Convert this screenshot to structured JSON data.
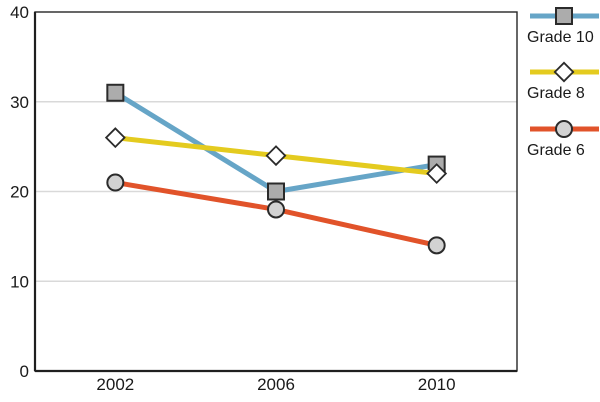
{
  "chart_data": {
    "type": "line",
    "categories": [
      "2002",
      "2006",
      "2010"
    ],
    "series": [
      {
        "name": "Grade 10",
        "values": [
          31,
          20,
          23
        ],
        "color": "#66A5C7",
        "marker": "square",
        "marker_fill": "#ACACAC"
      },
      {
        "name": "Grade 8",
        "values": [
          26,
          24,
          22
        ],
        "color": "#E4CB1F",
        "marker": "diamond",
        "marker_fill": "#FFFFFF"
      },
      {
        "name": "Grade 6",
        "values": [
          21,
          18,
          14
        ],
        "color": "#E1532A",
        "marker": "circle",
        "marker_fill": "#D2D2D2"
      }
    ],
    "ylim": [
      0,
      40
    ],
    "yticks": [
      0,
      10,
      20,
      30,
      40
    ],
    "grid": true,
    "legend_position": "right",
    "colors": {
      "marker_stroke": "#2B2B2B",
      "axis": "#262626",
      "grid": "#D9D9D9",
      "text": "#1A1A1A"
    }
  }
}
